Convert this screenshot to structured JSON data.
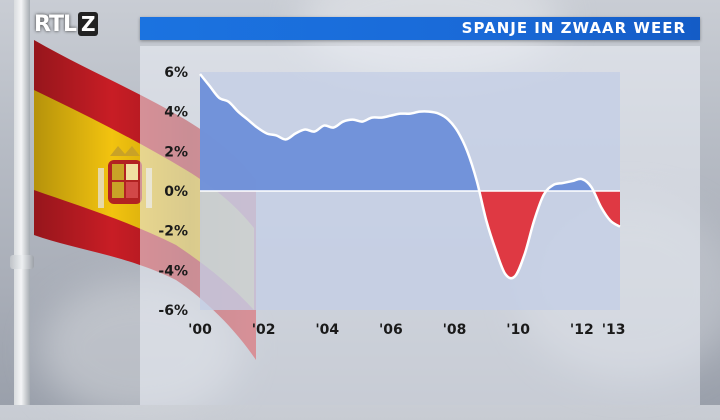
{
  "header": {
    "logo_text": "RTL",
    "logo_suffix": "Z",
    "title": "SPANJE IN ZWAAR WEER"
  },
  "colors": {
    "title_bar": "#1a6ad8",
    "positive_fill": "#6e8fd9",
    "negative_fill": "#e0303a",
    "line": "#ffffff",
    "plot_bg": "#c3cde6"
  },
  "icons": {
    "flag": "spain-flag-icon"
  },
  "chart_data": {
    "type": "area",
    "title": "SPANJE IN ZWAAR WEER",
    "xlabel": "",
    "ylabel": "",
    "ylim": [
      -6,
      6
    ],
    "yticks": [
      6,
      4,
      2,
      0,
      -2,
      -4,
      -6
    ],
    "ytick_labels": [
      "6%",
      "4%",
      "2%",
      "0%",
      "-2%",
      "-4%",
      "-6%"
    ],
    "xlim": [
      2000,
      2013.2
    ],
    "xticks": [
      2000,
      2002,
      2004,
      2006,
      2008,
      2010,
      2012,
      2013
    ],
    "xtick_labels": [
      "'00",
      "'02",
      "'04",
      "'06",
      "'08",
      "'10",
      "'12",
      "'13"
    ],
    "grid": false,
    "series": [
      {
        "name": "",
        "x": [
          2000.0,
          2000.3,
          2000.6,
          2000.9,
          2001.2,
          2001.5,
          2001.8,
          2002.1,
          2002.4,
          2002.7,
          2003.0,
          2003.3,
          2003.6,
          2003.9,
          2004.2,
          2004.5,
          2004.8,
          2005.1,
          2005.4,
          2005.7,
          2006.0,
          2006.3,
          2006.6,
          2006.9,
          2007.2,
          2007.5,
          2007.8,
          2008.1,
          2008.4,
          2008.7,
          2009.0,
          2009.3,
          2009.6,
          2009.9,
          2010.2,
          2010.5,
          2010.8,
          2011.1,
          2011.4,
          2011.7,
          2012.0,
          2012.3,
          2012.6,
          2012.9,
          2013.2
        ],
        "y": [
          5.9,
          5.3,
          4.7,
          4.5,
          4.0,
          3.6,
          3.2,
          2.9,
          2.8,
          2.6,
          2.9,
          3.1,
          3.0,
          3.3,
          3.2,
          3.5,
          3.6,
          3.5,
          3.7,
          3.7,
          3.8,
          3.9,
          3.9,
          4.0,
          4.0,
          3.9,
          3.6,
          3.0,
          2.0,
          0.5,
          -1.5,
          -3.0,
          -4.2,
          -4.3,
          -3.2,
          -1.5,
          -0.2,
          0.3,
          0.4,
          0.5,
          0.6,
          0.2,
          -0.8,
          -1.5,
          -1.8
        ]
      }
    ]
  }
}
